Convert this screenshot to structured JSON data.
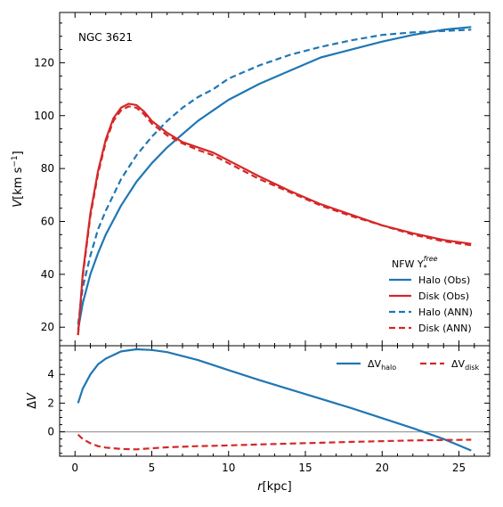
{
  "chart_data": {
    "type": "line",
    "title": "",
    "annotation": "NGC 3621",
    "xlabel": "r[kpc]",
    "x_ticks": [
      0,
      5,
      10,
      15,
      20,
      25
    ],
    "xlim": [
      -1,
      27
    ],
    "panels": [
      {
        "id": "top",
        "ylabel": "V[km s−1]",
        "ylim": [
          13,
          139
        ],
        "y_ticks": [
          20,
          40,
          60,
          80,
          100,
          120
        ],
        "legend": {
          "title": "NFW Υ*free",
          "position": "lower-right",
          "entries": [
            "Halo (Obs)",
            "Disk (Obs)",
            "Halo (ANN)",
            "Disk (ANN)"
          ]
        },
        "series": [
          {
            "name": "Halo (Obs)",
            "color": "#1f77b4",
            "style": "solid",
            "x": [
              0.2,
              0.5,
              1,
              1.5,
              2,
              3,
              4,
              5,
              6,
              7,
              8,
              9,
              10,
              12,
              14,
              16,
              18,
              20,
              22,
              24,
              25.8
            ],
            "y": [
              19,
              29,
              40,
              48,
              55,
              66,
              75,
              82,
              88,
              93,
              98,
              102,
              106,
              112,
              117,
              122,
              125,
              128,
              130.5,
              132.5,
              133.5
            ]
          },
          {
            "name": "Disk (Obs)",
            "color": "#d62728",
            "style": "solid",
            "x": [
              0.2,
              0.5,
              1,
              1.5,
              2,
              2.5,
              3,
              3.5,
              4,
              4.5,
              5,
              6,
              7,
              8,
              9,
              10,
              12,
              14,
              16,
              18,
              20,
              22,
              24,
              25.8
            ],
            "y": [
              17,
              40,
              63,
              79,
              91,
              99,
              103,
              104.5,
              104,
              101.5,
              98,
              93.5,
              90,
              88,
              86,
              83,
              77,
              71.5,
              66.5,
              62.5,
              58.5,
              55.5,
              53,
              51.5
            ]
          },
          {
            "name": "Halo (ANN)",
            "color": "#1f77b4",
            "style": "dashed",
            "x": [
              0.2,
              0.5,
              1,
              1.5,
              2,
              3,
              4,
              5,
              6,
              7,
              8,
              9,
              10,
              12,
              14,
              16,
              18,
              20,
              22,
              24,
              25.8
            ],
            "y": [
              21,
              35,
              47,
              57,
              64,
              76,
              85,
              92,
              98,
              103,
              107,
              110,
              114,
              119,
              123,
              126,
              128.5,
              130.5,
              131.5,
              132,
              132.5
            ]
          },
          {
            "name": "Disk (ANN)",
            "color": "#d62728",
            "style": "dashed",
            "x": [
              0.2,
              0.5,
              1,
              1.5,
              2,
              2.5,
              3,
              3.5,
              4,
              4.5,
              5,
              6,
              7,
              8,
              9,
              10,
              12,
              14,
              16,
              18,
              20,
              22,
              24,
              25.8
            ],
            "y": [
              17,
              39,
              62,
              78,
              90,
              98,
              102,
              103.5,
              103,
              100.5,
              97,
              92.5,
              89.5,
              87,
              85,
              82,
              76,
              71,
              66,
              62,
              58.5,
              55,
              52.5,
              51
            ]
          }
        ]
      },
      {
        "id": "bottom",
        "ylabel": "ΔV",
        "ylim": [
          -1.7,
          6
        ],
        "y_ticks": [
          0,
          2,
          4
        ],
        "y_tick_labels": [
          "0",
          "2",
          "4"
        ],
        "reference_line": {
          "y": 0,
          "color": "#9e9e9e"
        },
        "legend": {
          "position": "upper-right",
          "entries": [
            "ΔV_halo",
            "ΔV_disk"
          ]
        },
        "series": [
          {
            "name": "ΔV_halo",
            "color": "#1f77b4",
            "style": "solid",
            "x": [
              0.2,
              0.5,
              1,
              1.5,
              2,
              3,
              4,
              5,
              6,
              8,
              10,
              12,
              14,
              16,
              18,
              20,
              22,
              24,
              25.8
            ],
            "y": [
              2.0,
              3.0,
              4.0,
              4.7,
              5.1,
              5.6,
              5.75,
              5.7,
              5.55,
              5.0,
              4.3,
              3.6,
              2.95,
              2.3,
              1.65,
              0.95,
              0.25,
              -0.5,
              -1.3
            ]
          },
          {
            "name": "ΔV_disk",
            "color": "#d62728",
            "style": "dashed",
            "x": [
              0.2,
              0.5,
              1,
              1.5,
              2,
              3,
              4,
              5,
              6,
              8,
              10,
              12,
              14,
              16,
              18,
              20,
              22,
              24,
              25.8
            ],
            "y": [
              -0.2,
              -0.5,
              -0.8,
              -1.0,
              -1.1,
              -1.2,
              -1.22,
              -1.15,
              -1.08,
              -1.0,
              -0.95,
              -0.88,
              -0.82,
              -0.76,
              -0.7,
              -0.65,
              -0.6,
              -0.57,
              -0.55
            ]
          }
        ]
      }
    ]
  }
}
